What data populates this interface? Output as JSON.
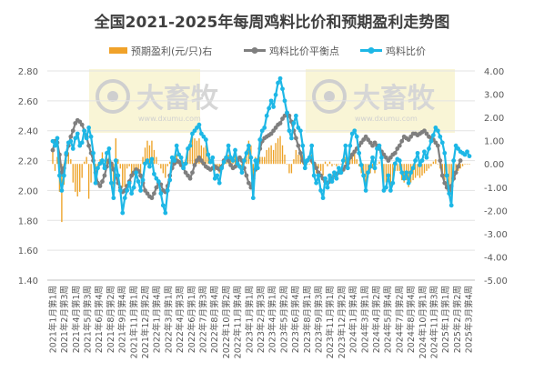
{
  "chart_data": {
    "type": "bar+line",
    "title": "全国2021-2025年每周鸡料比价和预期盈利走势图",
    "watermark": "大畜牧",
    "watermark_sub": "www.dxumu.com",
    "legend": {
      "placement": "top",
      "items": [
        {
          "name": "预期盈利(元/只)右",
          "kind": "bar",
          "color": "#f0a22a"
        },
        {
          "name": "鸡料比价平衡点",
          "kind": "line",
          "color": "#7f7f7f"
        },
        {
          "name": "鸡料比价",
          "kind": "line",
          "color": "#1db7e6"
        }
      ]
    },
    "y_left": {
      "min": 1.4,
      "max": 2.8,
      "step": 0.2,
      "ticks": [
        "1.40",
        "1.60",
        "1.80",
        "2.00",
        "2.20",
        "2.40",
        "2.60",
        "2.80"
      ]
    },
    "y_right": {
      "min": -5,
      "max": 4,
      "step": 1,
      "ticks": [
        "-5.00",
        "-4.00",
        "-3.00",
        "-2.00",
        "-1.00",
        "0.00",
        "1.00",
        "2.00",
        "3.00",
        "4.00"
      ]
    },
    "x_tick_labels": [
      "2021年1月第1周",
      "2021年2月第3周",
      "2021年4月第1周",
      "2021年5月第3周",
      "2021年6月第4周",
      "2021年8月第2周",
      "2021年9月第4周",
      "2021年11月第1周",
      "2021年12月第2周",
      "2022年1月第4周",
      "2022年3月第1周",
      "2022年4月第3周",
      "2022年6月第1周",
      "2022年7月第3周",
      "2022年8月第4周",
      "2022年10月第2周",
      "2022年11月第4周",
      "2023年1月第1周",
      "2023年2月第3周",
      "2023年4月第1周",
      "2023年5月第2周",
      "2023年6月第4周",
      "2023年8月第1周",
      "2023年9月第3周",
      "2023年11月第1周",
      "2023年12月第2周",
      "2024年1月第4周",
      "2024年3月第1周",
      "2024年4月第2周",
      "2024年5月第4周",
      "2024年7月第2周",
      "2024年8月第4周",
      "2024年10月第1周",
      "2024年11月第3周",
      "2025年1月第1周",
      "2025年2月第2周",
      "2025年3月第4周"
    ],
    "series": [
      {
        "name": "鸡料比价",
        "axis": "left",
        "values": [
          2.33,
          2.3,
          2.35,
          2.1,
          2.0,
          2.1,
          2.25,
          2.32,
          2.33,
          2.28,
          2.35,
          2.38,
          2.3,
          2.32,
          2.4,
          2.35,
          2.42,
          2.36,
          2.25,
          2.05,
          2.15,
          2.18,
          2.2,
          2.15,
          2.25,
          2.28,
          2.05,
          1.95,
          2.2,
          2.1,
          2.0,
          1.85,
          1.95,
          2.0,
          2.05,
          1.98,
          2.02,
          2.12,
          2.06,
          2.0,
          2.07,
          2.18,
          2.2,
          2.16,
          2.21,
          2.11,
          2.08,
          2.06,
          1.98,
          1.9,
          1.85,
          2.0,
          2.07,
          2.22,
          2.2,
          2.3,
          2.24,
          2.22,
          2.15,
          2.18,
          2.28,
          2.3,
          2.38,
          2.4,
          2.42,
          2.44,
          2.38,
          2.36,
          2.34,
          2.24,
          2.19,
          2.22,
          2.08,
          2.1,
          2.05,
          2.15,
          2.19,
          2.22,
          2.3,
          2.22,
          2.2,
          2.27,
          2.18,
          2.16,
          2.12,
          2.2,
          2.25,
          2.3,
          2.22,
          1.95,
          2.2,
          2.15,
          2.34,
          2.4,
          2.42,
          2.5,
          2.55,
          2.6,
          2.56,
          2.64,
          2.72,
          2.75,
          2.68,
          2.6,
          2.52,
          2.4,
          2.35,
          2.45,
          2.5,
          2.42,
          2.4,
          2.3,
          2.15,
          2.2,
          2.22,
          2.3,
          2.1,
          2.05,
          2.1,
          2.0,
          1.95,
          2.08,
          2.02,
          2.1,
          2.06,
          2.12,
          2.08,
          2.15,
          2.12,
          2.2,
          2.3,
          2.15,
          2.3,
          2.38,
          2.4,
          2.36,
          2.25,
          2.17,
          2.1,
          2.0,
          2.12,
          2.16,
          2.22,
          2.15,
          2.28,
          2.3,
          2.22,
          2.0,
          2.02,
          2.1,
          2.0,
          2.05,
          2.18,
          2.21,
          2.2,
          2.12,
          2.08,
          2.12,
          2.05,
          2.12,
          2.15,
          2.2,
          2.25,
          2.17,
          2.2,
          2.26,
          2.22,
          2.28,
          2.33,
          2.37,
          2.42,
          2.4,
          2.36,
          2.32,
          2.25,
          2.1,
          1.98,
          1.9,
          2.2,
          2.3,
          2.28,
          2.26,
          2.25,
          2.24,
          2.26,
          2.23
        ]
      },
      {
        "name": "鸡料比价平衡点",
        "axis": "left",
        "values": [
          2.27,
          2.33,
          2.32,
          2.24,
          2.12,
          2.15,
          2.24,
          2.3,
          2.36,
          2.4,
          2.45,
          2.47,
          2.46,
          2.44,
          2.4,
          2.36,
          2.3,
          2.25,
          2.2,
          2.12,
          2.05,
          2.03,
          2.06,
          2.1,
          2.16,
          2.2,
          2.18,
          2.14,
          2.1,
          2.05,
          2.02,
          1.99,
          2.0,
          2.03,
          2.06,
          2.1,
          2.12,
          2.14,
          2.13,
          2.1,
          2.05,
          2.0,
          1.98,
          1.96,
          1.95,
          1.98,
          2.02,
          2.05,
          2.04,
          2.0,
          1.99,
          2.03,
          2.1,
          2.15,
          2.18,
          2.2,
          2.19,
          2.17,
          2.15,
          2.12,
          2.1,
          2.08,
          2.12,
          2.17,
          2.2,
          2.22,
          2.2,
          2.18,
          2.16,
          2.15,
          2.14,
          2.15,
          2.16,
          2.15,
          2.14,
          2.16,
          2.2,
          2.22,
          2.2,
          2.17,
          2.15,
          2.16,
          2.2,
          2.22,
          2.2,
          2.15,
          2.1,
          2.05,
          2.02,
          2.08,
          2.14,
          2.2,
          2.28,
          2.33,
          2.35,
          2.36,
          2.37,
          2.38,
          2.4,
          2.42,
          2.44,
          2.45,
          2.48,
          2.5,
          2.52,
          2.5,
          2.46,
          2.4,
          2.35,
          2.3,
          2.25,
          2.2,
          2.18,
          2.2,
          2.22,
          2.2,
          2.18,
          2.15,
          2.12,
          2.1,
          2.08,
          2.06,
          2.05,
          2.06,
          2.08,
          2.1,
          2.11,
          2.12,
          2.12,
          2.14,
          2.16,
          2.18,
          2.22,
          2.24,
          2.26,
          2.28,
          2.3,
          2.32,
          2.34,
          2.36,
          2.34,
          2.32,
          2.3,
          2.32,
          2.3,
          2.28,
          2.26,
          2.24,
          2.22,
          2.2,
          2.22,
          2.24,
          2.25,
          2.28,
          2.3,
          2.33,
          2.36,
          2.35,
          2.34,
          2.36,
          2.38,
          2.38,
          2.37,
          2.38,
          2.39,
          2.4,
          2.38,
          2.36,
          2.35,
          2.34,
          2.32,
          2.3,
          2.2,
          2.1,
          2.05,
          2.02,
          2.0,
          2.03,
          2.08,
          2.12,
          2.16,
          2.2
        ]
      },
      {
        "name": "预期盈利(元/只)右",
        "axis": "right",
        "values": [
          0.6,
          -0.3,
          0.3,
          -1.2,
          -2.5,
          -0.9,
          0.2,
          0.5,
          0.2,
          -0.8,
          -1.2,
          -1.4,
          -1.2,
          -0.6,
          0.1,
          0.3,
          -1.5,
          -0.8,
          0.2,
          -0.5,
          -0.1,
          0.2,
          0.5,
          -0.2,
          0.3,
          0.3,
          -0.8,
          -1.1,
          1.1,
          0.2,
          -0.2,
          -1.0,
          -1.0,
          -0.2,
          -0.1,
          -0.6,
          -0.5,
          -0.2,
          -0.3,
          -0.5,
          0.3,
          0.7,
          1.0,
          0.8,
          1.0,
          0.6,
          0.3,
          0.0,
          -0.2,
          -0.4,
          -0.6,
          -0.1,
          0.1,
          0.3,
          0.1,
          0.4,
          0.2,
          0.2,
          0.1,
          0.2,
          0.7,
          1.0,
          1.2,
          1.1,
          1.0,
          1.1,
          0.8,
          0.7,
          0.8,
          0.4,
          0.2,
          0.3,
          -0.3,
          -0.2,
          -0.4,
          0.0,
          0.0,
          0.1,
          0.4,
          0.2,
          0.2,
          0.4,
          -0.1,
          -0.2,
          -0.3,
          0.2,
          0.6,
          1.0,
          0.8,
          -0.5,
          0.3,
          -0.2,
          0.3,
          0.3,
          0.3,
          0.6,
          0.7,
          0.8,
          0.6,
          0.9,
          1.1,
          1.2,
          0.8,
          0.4,
          0.0,
          -0.4,
          -0.4,
          0.2,
          0.6,
          0.4,
          0.6,
          0.4,
          -0.1,
          0.0,
          0.0,
          0.4,
          -0.3,
          -0.4,
          -0.2,
          -0.3,
          -0.5,
          0.1,
          -0.1,
          0.1,
          -0.1,
          0.0,
          -0.1,
          0.0,
          0.0,
          0.2,
          0.3,
          0.0,
          0.3,
          0.5,
          0.6,
          0.2,
          -0.1,
          -0.4,
          -0.6,
          -1.0,
          -0.6,
          -0.4,
          -0.2,
          -0.4,
          0.0,
          0.1,
          -0.1,
          -0.9,
          -0.8,
          -0.6,
          -1.0,
          -0.8,
          -0.3,
          -0.3,
          -0.3,
          -0.7,
          -0.8,
          -0.7,
          -1.0,
          -0.8,
          -0.7,
          -0.6,
          -0.5,
          -0.6,
          -0.5,
          -0.4,
          -0.3,
          -0.2,
          -0.1,
          0.1,
          0.2,
          0.0,
          -0.2,
          -0.4,
          -0.7,
          -1.0,
          -1.3,
          -1.5,
          -0.6,
          -0.3,
          -0.3,
          -0.2,
          -0.1,
          0.0,
          0.0,
          0.0
        ]
      }
    ]
  }
}
